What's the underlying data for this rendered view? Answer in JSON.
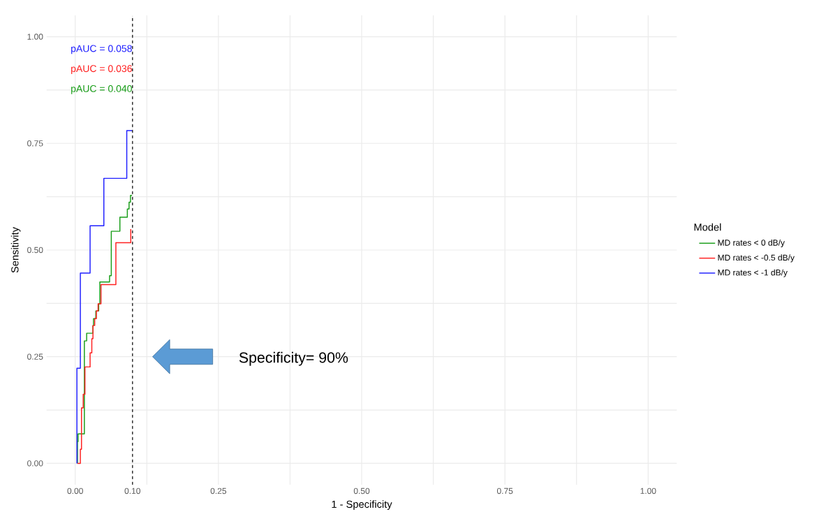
{
  "chart_data": {
    "type": "step",
    "xlabel": "1 - Specificity",
    "ylabel": "Sensitivity",
    "legend_title": "Model",
    "series": [
      {
        "name": "MD rates < 0 dB/y",
        "color": "#1a9e1a",
        "x": [
          0.004,
          0.004,
          0.005,
          0.016,
          0.02,
          0.031,
          0.032,
          0.036,
          0.041,
          0.043,
          0.06,
          0.063,
          0.078,
          0.091,
          0.094,
          0.0965,
          0.099
        ],
        "values": [
          0,
          0.051,
          0.069,
          0.287,
          0.305,
          0.323,
          0.339,
          0.357,
          0.374,
          0.425,
          0.44,
          0.544,
          0.577,
          0.596,
          0.612,
          0.628,
          0.628
        ]
      },
      {
        "name": "MD rates < -0.5 dB/y",
        "color": "#ff2020",
        "x": [
          0.004,
          0.009,
          0.011,
          0.014,
          0.017,
          0.026,
          0.029,
          0.031,
          0.034,
          0.037,
          0.04,
          0.045,
          0.071,
          0.097
        ],
        "values": [
          0,
          0.033,
          0.13,
          0.162,
          0.226,
          0.259,
          0.292,
          0.323,
          0.339,
          0.357,
          0.374,
          0.419,
          0.517,
          0.549
        ]
      },
      {
        "name": "MD rates < -1 dB/y",
        "color": "#2020ff",
        "x": [
          0.003,
          0.003,
          0.009,
          0.026,
          0.05,
          0.09,
          0.1
        ],
        "values": [
          0,
          0.223,
          0.446,
          0.557,
          0.668,
          0.78,
          0.78
        ]
      }
    ],
    "xlim": [
      -0.05,
      1.05
    ],
    "ylim": [
      -0.05,
      1.05
    ],
    "xticks": [
      {
        "value": 0,
        "label": "0.00"
      },
      {
        "value": 0.1,
        "label": "0.10"
      },
      {
        "value": 0.25,
        "label": "0.25"
      },
      {
        "value": 0.5,
        "label": "0.50"
      },
      {
        "value": 0.75,
        "label": "0.75"
      },
      {
        "value": 1,
        "label": "1.00"
      }
    ],
    "yticks": [
      {
        "value": 0,
        "label": "0.00"
      },
      {
        "value": 0.25,
        "label": "0.25"
      },
      {
        "value": 0.5,
        "label": "0.50"
      },
      {
        "value": 0.75,
        "label": "0.75"
      },
      {
        "value": 1,
        "label": "1.00"
      }
    ],
    "ref_lines": [
      {
        "axis": "x",
        "value": 0.1,
        "color": "#333333",
        "line_style": "dashed"
      }
    ],
    "annotations": [
      "pAUC = 0.058",
      "pAUC = 0.036",
      "pAUC = 0.040",
      "Specificity= 90%"
    ],
    "grid": true,
    "legend": "right",
    "line_style": "solid",
    "marker": "none"
  }
}
